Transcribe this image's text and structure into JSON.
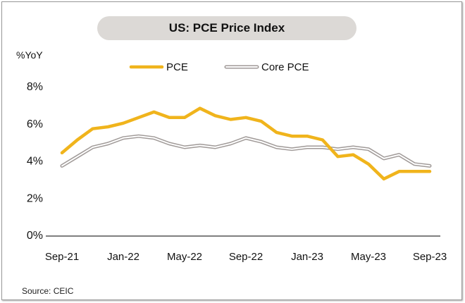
{
  "chart_data": {
    "type": "line",
    "title": "US: PCE Price Index",
    "ylabel": "%YoY",
    "xlabel": "",
    "ylim": [
      0,
      8
    ],
    "y_ticks": [
      0,
      2,
      4,
      6,
      8
    ],
    "y_tick_labels": [
      "0%",
      "2%",
      "4%",
      "6%",
      "8%"
    ],
    "x_tick_labels": [
      "Sep-21",
      "Jan-22",
      "May-22",
      "Sep-22",
      "Jan-23",
      "May-23",
      "Sep-23"
    ],
    "x": [
      "Sep-21",
      "Oct-21",
      "Nov-21",
      "Dec-21",
      "Jan-22",
      "Feb-22",
      "Mar-22",
      "Apr-22",
      "May-22",
      "Jun-22",
      "Jul-22",
      "Aug-22",
      "Sep-22",
      "Oct-22",
      "Nov-22",
      "Dec-22",
      "Jan-23",
      "Feb-23",
      "Mar-23",
      "Apr-23",
      "May-23",
      "Jun-23",
      "Jul-23",
      "Aug-23",
      "Sep-23"
    ],
    "series": [
      {
        "name": "PCE",
        "color": "#f0b41c",
        "values": [
          4.4,
          5.1,
          5.7,
          5.8,
          6.0,
          6.3,
          6.6,
          6.3,
          6.3,
          6.8,
          6.4,
          6.2,
          6.3,
          6.1,
          5.5,
          5.3,
          5.3,
          5.1,
          4.2,
          4.3,
          3.8,
          3.0,
          3.4,
          3.4,
          3.4
        ]
      },
      {
        "name": "Core PCE",
        "color": "#a09a98",
        "values": [
          3.7,
          4.2,
          4.7,
          4.9,
          5.2,
          5.3,
          5.2,
          4.9,
          4.7,
          4.8,
          4.7,
          4.9,
          5.2,
          5.0,
          4.7,
          4.6,
          4.7,
          4.7,
          4.6,
          4.7,
          4.6,
          4.1,
          4.3,
          3.8,
          3.7
        ]
      }
    ],
    "legend_position": "top",
    "grid": false
  },
  "footer": {
    "source": "Source: CEIC"
  }
}
